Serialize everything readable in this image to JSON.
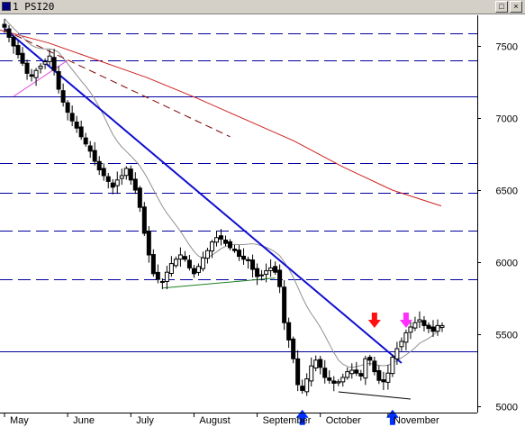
{
  "window": {
    "title": "1 PSI20",
    "controls": {
      "restore": "□",
      "close": "×"
    }
  },
  "chart_data": {
    "type": "candlestick",
    "ylim": [
      4940,
      7760
    ],
    "y_ticks": [
      5000,
      5500,
      6000,
      6500,
      7000,
      7500
    ],
    "y_tick_labels": [
      "5000",
      "5500",
      "6000",
      "6500",
      "7000",
      "7500"
    ],
    "x_labels": [
      "May",
      "June",
      "July",
      "August",
      "September",
      "October",
      "November"
    ],
    "grid": false,
    "legend": "none",
    "colors": {
      "background": "#ffffff",
      "candles": "#000000",
      "trendline_main": "#1010d0",
      "moving_avg_long": "#d02020",
      "moving_avg_short": "#909090",
      "horizontal_levels": "#0000a0",
      "support_wedge": "#208020",
      "wedge_upper": "#e040e0",
      "arrow_up": "#0030ff",
      "arrow_down_red": "#ff1010",
      "arrow_down_magenta": "#ff30ff"
    },
    "horizontal_levels": [
      {
        "value": 7590,
        "style": "dashed"
      },
      {
        "value": 7400,
        "style": "dashed"
      },
      {
        "value": 7150,
        "style": "solid"
      },
      {
        "value": 6690,
        "style": "dashed"
      },
      {
        "value": 6480,
        "style": "dashed"
      },
      {
        "value": 6220,
        "style": "dashed"
      },
      {
        "value": 5880,
        "style": "dashed"
      },
      {
        "value": 5380,
        "style": "solid"
      }
    ],
    "series": [
      {
        "values": [
          7630,
          7560,
          7500,
          7440,
          7380,
          7310,
          7290,
          7330,
          7360,
          7390,
          7430,
          7330,
          7200,
          7110,
          7040,
          6980,
          6930,
          6870,
          6820,
          6770,
          6700,
          6640,
          6600,
          6560,
          6520,
          6570,
          6600,
          6650,
          6570,
          6500,
          6380,
          6200,
          6050,
          5920,
          5880,
          5860,
          5930,
          5990,
          6020,
          6050,
          6020,
          5960,
          5920,
          5970,
          6030,
          6080,
          6140,
          6170,
          6160,
          6130,
          6100,
          6080,
          6040,
          6020,
          6010,
          5950,
          5900,
          5910,
          5940,
          5960,
          5930,
          5830,
          5580,
          5460,
          5330,
          5150,
          5110,
          5190,
          5280,
          5320,
          5270,
          5200,
          5180,
          5160,
          5170,
          5200,
          5240,
          5250,
          5230,
          5210,
          5330,
          5320,
          5240,
          5180,
          5170,
          5230,
          5340,
          5400,
          5450,
          5510,
          5550,
          5580,
          5600,
          5560,
          5540,
          5520,
          5560,
          5560
        ]
      },
      {
        "name": "",
        "values": [
          7610,
          7520,
          7400,
          7280,
          7140,
          6990,
          6840,
          6660,
          6500,
          6390
        ]
      }
    ]
  }
}
